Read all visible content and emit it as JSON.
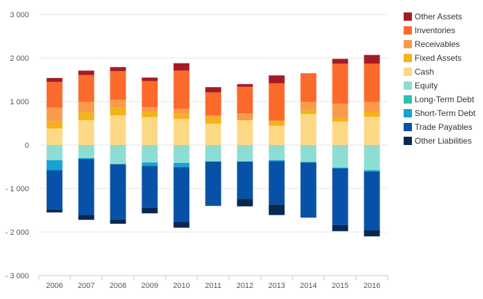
{
  "chart_data": {
    "type": "bar",
    "stacked": true,
    "categories": [
      "2006",
      "2007",
      "2008",
      "2009",
      "2010",
      "2011",
      "2012",
      "2013",
      "2014",
      "2015",
      "2016"
    ],
    "ylim": [
      -3000,
      3000
    ],
    "yticks": [
      -3000,
      -2000,
      -1000,
      0,
      1000,
      2000,
      3000
    ],
    "ytick_labels": [
      "- 3 000",
      "- 2 000",
      "- 1 000",
      "0",
      "1 000",
      "2 000",
      "3 000"
    ],
    "grid": true,
    "legend_position": "right",
    "series": [
      {
        "name": "Cash",
        "color": "#FDD885",
        "values": [
          380,
          570,
          680,
          640,
          600,
          490,
          570,
          440,
          710,
          540,
          650
        ]
      },
      {
        "name": "Fixed Assets",
        "color": "#F5B21C",
        "values": [
          170,
          180,
          180,
          130,
          110,
          150,
          0,
          120,
          90,
          80,
          120
        ]
      },
      {
        "name": "Receivables",
        "color": "#F99B4C",
        "values": [
          310,
          240,
          180,
          100,
          120,
          40,
          160,
          0,
          190,
          330,
          220
        ]
      },
      {
        "name": "Inventories",
        "color": "#FB6A2A",
        "values": [
          590,
          620,
          660,
          600,
          880,
          530,
          610,
          860,
          660,
          920,
          880
        ]
      },
      {
        "name": "Other Assets",
        "color": "#A31B23",
        "values": [
          90,
          100,
          90,
          80,
          170,
          120,
          60,
          180,
          0,
          110,
          200
        ]
      },
      {
        "name": "Equity",
        "color": "#8EDDD3",
        "values": [
          -350,
          -300,
          -440,
          -400,
          -410,
          -380,
          -380,
          -350,
          -390,
          -520,
          -580
        ]
      },
      {
        "name": "Long-Term Debt",
        "color": "#2CC0AF",
        "values": [
          0,
          0,
          0,
          0,
          0,
          0,
          0,
          0,
          0,
          0,
          0
        ]
      },
      {
        "name": "Short-Term Debt",
        "color": "#14A3D4",
        "values": [
          -230,
          -20,
          0,
          -80,
          -100,
          0,
          0,
          -20,
          -10,
          -20,
          -30
        ]
      },
      {
        "name": "Trade Payables",
        "color": "#0752A8",
        "values": [
          -900,
          -1290,
          -1270,
          -960,
          -1260,
          -1020,
          -860,
          -1000,
          -1270,
          -1300,
          -1350
        ]
      },
      {
        "name": "Other Liabilities",
        "color": "#07284F",
        "values": [
          -70,
          -110,
          -100,
          -130,
          -130,
          0,
          -170,
          -240,
          0,
          -140,
          -140
        ]
      }
    ],
    "legend_order": [
      "Other Assets",
      "Inventories",
      "Receivables",
      "Fixed Assets",
      "Cash",
      "Equity",
      "Long-Term Debt",
      "Short-Term Debt",
      "Trade Payables",
      "Other Liabilities"
    ]
  }
}
